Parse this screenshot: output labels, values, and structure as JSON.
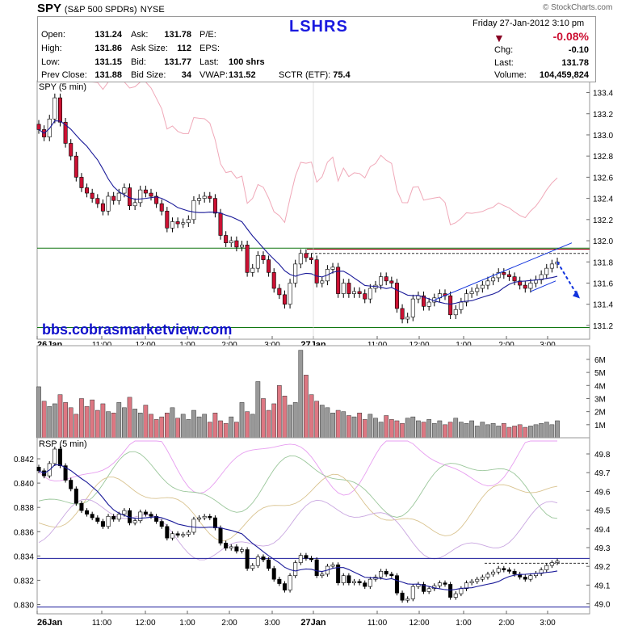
{
  "header": {
    "symbol": "SPY",
    "name": "(S&P 500 SPDRs)",
    "exchange": "NYSE",
    "brand": "© StockCharts.com",
    "watermark_top": "LSHRS",
    "date_line": "Friday  27-Jan-2012  3:10 pm",
    "change_pct": "-0.08%",
    "chg_label": "Chg:",
    "chg_value": "-0.10",
    "last_label": "Last:",
    "last_value": "131.78",
    "volume_label": "Volume:",
    "volume_value": "104,459,824",
    "quotes": [
      {
        "label": "Open:",
        "value": "131.24"
      },
      {
        "label": "High:",
        "value": "131.86"
      },
      {
        "label": "Low:",
        "value": "131.15"
      },
      {
        "label": "Prev Close:",
        "value": "131.88"
      },
      {
        "label": "Ask:",
        "value": "131.78"
      },
      {
        "label": "Ask Size:",
        "value": "112"
      },
      {
        "label": "Bid:",
        "value": "131.77"
      },
      {
        "label": "Bid Size:",
        "value": "34"
      },
      {
        "label": "P/E:",
        "value": ""
      },
      {
        "label": "EPS:",
        "value": ""
      },
      {
        "label": "Last:",
        "value": "100 shrs"
      },
      {
        "label": "VWAP:",
        "value": "131.52"
      },
      {
        "label": "SCTR (ETF):",
        "value": "75.4"
      }
    ]
  },
  "watermark": "bbs.cobrasmarketview.com",
  "colors": {
    "up": "#ffffff",
    "down": "#cc1133",
    "ma": "#1a1a99",
    "trend": "#1133dd",
    "upper_band": "#f0a8b8",
    "support": "#117711",
    "resistance": "#990011"
  },
  "chart_data": [
    {
      "type": "candlestick",
      "title": "SPY (5 min)",
      "ylim": [
        131.1,
        133.45
      ],
      "y_ticks": [
        "133.4",
        "133.2",
        "133.0",
        "132.8",
        "132.6",
        "132.4",
        "132.2",
        "132.0",
        "131.8",
        "131.6",
        "131.4",
        "131.2"
      ],
      "x_ticks": [
        "26Jan",
        "11:00",
        "12:00",
        "1:00",
        "2:00",
        "3:00",
        "27Jan",
        "11:00",
        "12:00",
        "1:00",
        "2:00",
        "3:00"
      ],
      "levels": {
        "support": 131.18,
        "resistance_green": 131.93,
        "resistance_red": 131.92,
        "resistance_dashed": 131.88
      },
      "trend_channel": {
        "upper": [
          [
            96,
            131.44
          ],
          [
            124,
            131.98
          ]
        ],
        "lower": [
          [
            120,
            131.62
          ],
          [
            122,
            131.68
          ]
        ]
      },
      "forecast_arrow": {
        "from": [
          124,
          131.8
        ],
        "to": [
          128,
          131.47
        ]
      },
      "closes": [
        133.05,
        132.98,
        133.15,
        133.35,
        133.12,
        132.92,
        132.8,
        132.6,
        132.5,
        132.45,
        132.4,
        132.35,
        132.28,
        132.42,
        132.38,
        132.45,
        132.5,
        132.33,
        132.36,
        132.48,
        132.45,
        132.42,
        132.35,
        132.28,
        132.12,
        132.18,
        132.16,
        132.17,
        132.2,
        132.38,
        132.4,
        132.42,
        132.4,
        132.26,
        132.05,
        131.98,
        132.0,
        131.94,
        131.96,
        131.7,
        131.74,
        131.86,
        131.82,
        131.7,
        131.55,
        131.49,
        131.4,
        131.6,
        131.78,
        131.88,
        131.84,
        131.82,
        131.6,
        131.62,
        131.73,
        131.75,
        131.5,
        131.6,
        131.5,
        131.52,
        131.5,
        131.45,
        131.55,
        131.58,
        131.66,
        131.62,
        131.6,
        131.36,
        131.26,
        131.28,
        131.45,
        131.48,
        131.38,
        131.42,
        131.46,
        131.5,
        131.48,
        131.3,
        131.35,
        131.42,
        131.5,
        131.52,
        131.55,
        131.58,
        131.62,
        131.65,
        131.7,
        131.68,
        131.66,
        131.62,
        131.58,
        131.55,
        131.6,
        131.63,
        131.68,
        131.74,
        131.78,
        131.8
      ]
    },
    {
      "type": "bar",
      "title": "Volume",
      "ylim": [
        0,
        6.8
      ],
      "y_ticks": [
        "6M",
        "5M",
        "4M",
        "3M",
        "2M",
        "1M"
      ],
      "values": [
        3.9,
        2.8,
        2.4,
        2.6,
        3.3,
        2.7,
        2.3,
        1.8,
        3.0,
        2.4,
        2.9,
        2.1,
        2.6,
        2.0,
        1.9,
        2.7,
        2.3,
        3.1,
        2.2,
        1.9,
        2.5,
        1.8,
        1.4,
        1.6,
        1.9,
        2.3,
        1.5,
        1.8,
        1.4,
        2.1,
        1.6,
        1.8,
        1.2,
        1.9,
        1.3,
        1.1,
        1.6,
        1.2,
        2.7,
        2.0,
        1.8,
        4.3,
        3.0,
        2.1,
        2.6,
        4.0,
        3.2,
        2.5,
        2.7,
        6.7,
        4.8,
        3.3,
        2.8,
        2.5,
        2.3,
        1.9,
        2.1,
        2.0,
        1.7,
        1.6,
        1.9,
        1.4,
        1.8,
        1.5,
        1.2,
        1.7,
        1.4,
        1.3,
        1.1,
        1.5,
        1.6,
        1.3,
        1.2,
        1.4,
        1.1,
        1.3,
        1.0,
        1.2,
        1.5,
        1.2,
        1.1,
        1.3,
        0.9,
        1.2,
        1.0,
        1.1,
        0.9,
        1.1,
        0.8,
        0.9,
        1.0,
        0.8,
        0.9,
        1.0,
        1.1,
        1.2,
        1.0,
        1.3
      ]
    },
    {
      "type": "candlestick",
      "title": "RSP (5 min)",
      "ylim": [
        0.8295,
        0.8432
      ],
      "y_ticks": [
        "0.842",
        "0.840",
        "0.838",
        "0.836",
        "0.834",
        "0.832",
        "0.830"
      ],
      "y2_ticks": [
        "49.8",
        "49.7",
        "49.6",
        "49.5",
        "49.4",
        "49.3",
        "49.2",
        "49.1",
        "49.0"
      ],
      "x_ticks": [
        "26Jan",
        "11:00",
        "12:00",
        "1:00",
        "2:00",
        "3:00",
        "27Jan",
        "11:00",
        "12:00",
        "1:00",
        "2:00",
        "3:00"
      ],
      "levels": {
        "support": 0.8298,
        "resistance": 0.8338,
        "resistance_dashed": 0.8334
      }
    }
  ]
}
